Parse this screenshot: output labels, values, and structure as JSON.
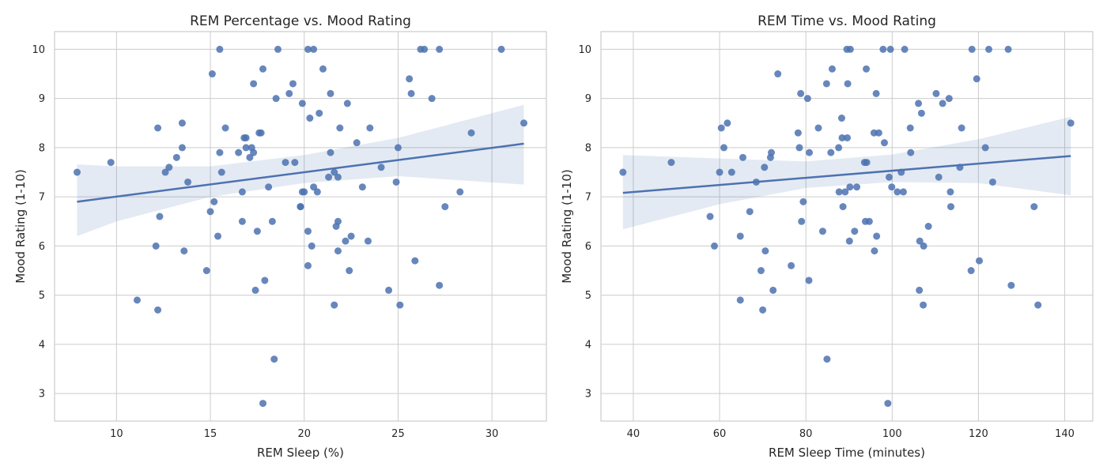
{
  "figure": {
    "background": "#ffffff"
  },
  "style": {
    "point_color": "#4c72b0",
    "line_color": "#4c72b0",
    "band_color": "#4c72b0",
    "grid_color": "#cccccc",
    "frame_color": "#cccccc"
  },
  "chart_data": [
    {
      "type": "scatter",
      "title": "REM Percentage vs. Mood Rating",
      "xlabel": "REM Sleep (%)",
      "ylabel": "Mood Rating (1-10)",
      "xlim": [
        6.7,
        32.9
      ],
      "ylim": [
        2.44,
        10.36
      ],
      "xticks": [
        10,
        15,
        20,
        25,
        30
      ],
      "yticks": [
        3,
        4,
        5,
        6,
        7,
        8,
        9,
        10
      ],
      "grid": true,
      "regression": {
        "x": [
          7.9,
          31.7
        ],
        "y": [
          6.9,
          8.08
        ]
      },
      "confidence_band": {
        "x": [
          7.9,
          10,
          15,
          20,
          25,
          31.7
        ],
        "lower": [
          6.2,
          6.5,
          7.0,
          7.28,
          7.42,
          7.25
        ],
        "upper": [
          7.66,
          7.62,
          7.62,
          7.85,
          8.2,
          8.87
        ]
      },
      "points": [
        [
          7.9,
          7.5
        ],
        [
          9.7,
          7.7
        ],
        [
          11.1,
          4.9
        ],
        [
          12.1,
          6.0
        ],
        [
          12.2,
          8.4
        ],
        [
          12.2,
          4.7
        ],
        [
          12.3,
          6.6
        ],
        [
          12.6,
          7.5
        ],
        [
          12.8,
          7.6
        ],
        [
          13.2,
          7.8
        ],
        [
          13.5,
          8.5
        ],
        [
          13.5,
          8.0
        ],
        [
          13.6,
          5.9
        ],
        [
          13.8,
          7.3
        ],
        [
          14.8,
          5.5
        ],
        [
          15.0,
          6.7
        ],
        [
          15.1,
          9.5
        ],
        [
          15.2,
          6.9
        ],
        [
          15.4,
          6.2
        ],
        [
          15.5,
          10.0
        ],
        [
          15.5,
          7.9
        ],
        [
          15.6,
          7.5
        ],
        [
          15.8,
          8.4
        ],
        [
          16.5,
          7.9
        ],
        [
          16.7,
          7.1
        ],
        [
          16.7,
          6.5
        ],
        [
          16.8,
          8.2
        ],
        [
          16.9,
          8.2
        ],
        [
          16.9,
          8.0
        ],
        [
          17.1,
          7.8
        ],
        [
          17.2,
          8.0
        ],
        [
          17.3,
          9.3
        ],
        [
          17.3,
          7.9
        ],
        [
          17.4,
          5.1
        ],
        [
          17.5,
          6.3
        ],
        [
          17.6,
          8.3
        ],
        [
          17.7,
          8.3
        ],
        [
          17.8,
          9.6
        ],
        [
          17.8,
          2.8
        ],
        [
          17.9,
          5.3
        ],
        [
          18.1,
          7.2
        ],
        [
          18.3,
          6.5
        ],
        [
          18.4,
          3.7
        ],
        [
          18.5,
          9.0
        ],
        [
          18.6,
          10.0
        ],
        [
          19.0,
          7.7
        ],
        [
          19.2,
          9.1
        ],
        [
          19.4,
          9.3
        ],
        [
          19.5,
          7.7
        ],
        [
          19.8,
          6.8
        ],
        [
          19.8,
          6.8
        ],
        [
          19.9,
          8.9
        ],
        [
          19.9,
          7.1
        ],
        [
          20.0,
          7.1
        ],
        [
          20.2,
          10.0
        ],
        [
          20.2,
          6.3
        ],
        [
          20.2,
          5.6
        ],
        [
          20.3,
          8.6
        ],
        [
          20.4,
          6.0
        ],
        [
          20.5,
          10.0
        ],
        [
          20.5,
          7.2
        ],
        [
          20.7,
          7.1
        ],
        [
          20.8,
          8.7
        ],
        [
          21.0,
          9.6
        ],
        [
          21.3,
          7.4
        ],
        [
          21.4,
          9.1
        ],
        [
          21.4,
          7.9
        ],
        [
          21.6,
          4.8
        ],
        [
          21.6,
          7.5
        ],
        [
          21.7,
          6.4
        ],
        [
          21.8,
          7.4
        ],
        [
          21.8,
          6.5
        ],
        [
          21.8,
          5.9
        ],
        [
          21.9,
          8.4
        ],
        [
          22.2,
          6.1
        ],
        [
          22.3,
          8.9
        ],
        [
          22.4,
          5.5
        ],
        [
          22.5,
          6.2
        ],
        [
          22.8,
          8.1
        ],
        [
          23.1,
          7.2
        ],
        [
          23.4,
          6.1
        ],
        [
          23.5,
          8.4
        ],
        [
          24.1,
          7.6
        ],
        [
          24.5,
          5.1
        ],
        [
          24.9,
          7.3
        ],
        [
          25.0,
          8.0
        ],
        [
          25.1,
          4.8
        ],
        [
          25.6,
          9.4
        ],
        [
          25.7,
          9.1
        ],
        [
          25.9,
          5.7
        ],
        [
          26.2,
          10.0
        ],
        [
          26.4,
          10.0
        ],
        [
          26.8,
          9.0
        ],
        [
          27.2,
          10.0
        ],
        [
          27.2,
          5.2
        ],
        [
          27.5,
          6.8
        ],
        [
          28.3,
          7.1
        ],
        [
          28.9,
          8.3
        ],
        [
          30.5,
          10.0
        ],
        [
          31.7,
          8.5
        ]
      ]
    },
    {
      "type": "scatter",
      "title": "REM Time vs. Mood Rating",
      "xlabel": "REM Sleep Time (minutes)",
      "ylabel": "Mood Rating (1-10)",
      "xlim": [
        32.5,
        146.5
      ],
      "ylim": [
        2.44,
        10.36
      ],
      "xticks": [
        40,
        60,
        80,
        100,
        120,
        140
      ],
      "yticks": [
        3,
        4,
        5,
        6,
        7,
        8,
        9,
        10
      ],
      "grid": true,
      "regression": {
        "x": [
          37.6,
          141.4
        ],
        "y": [
          7.08,
          7.83
        ]
      },
      "confidence_band": {
        "x": [
          37.6,
          60,
          80,
          100,
          120,
          141.4
        ],
        "lower": [
          6.34,
          6.85,
          7.18,
          7.3,
          7.28,
          7.03
        ],
        "upper": [
          7.85,
          7.78,
          7.72,
          7.86,
          8.17,
          8.63
        ]
      },
      "points": [
        [
          37.6,
          7.5
        ],
        [
          48.8,
          7.7
        ],
        [
          57.8,
          6.6
        ],
        [
          58.8,
          6.0
        ],
        [
          60.0,
          7.5
        ],
        [
          60.4,
          8.4
        ],
        [
          61.0,
          8.0
        ],
        [
          61.8,
          8.5
        ],
        [
          62.8,
          7.5
        ],
        [
          64.8,
          6.2
        ],
        [
          64.8,
          4.9
        ],
        [
          65.4,
          7.8
        ],
        [
          67.0,
          6.7
        ],
        [
          68.5,
          7.3
        ],
        [
          69.6,
          5.5
        ],
        [
          70.0,
          4.7
        ],
        [
          70.4,
          7.6
        ],
        [
          70.6,
          5.9
        ],
        [
          71.8,
          7.8
        ],
        [
          72.0,
          7.9
        ],
        [
          72.4,
          5.1
        ],
        [
          73.5,
          9.5
        ],
        [
          76.6,
          5.6
        ],
        [
          78.2,
          8.3
        ],
        [
          78.5,
          8.0
        ],
        [
          78.8,
          9.1
        ],
        [
          79.0,
          6.5
        ],
        [
          79.4,
          6.9
        ],
        [
          80.4,
          9.0
        ],
        [
          80.7,
          5.3
        ],
        [
          80.8,
          7.9
        ],
        [
          82.9,
          8.4
        ],
        [
          83.9,
          6.3
        ],
        [
          84.8,
          9.3
        ],
        [
          84.9,
          3.7
        ],
        [
          85.8,
          7.9
        ],
        [
          86.1,
          9.6
        ],
        [
          87.6,
          8.0
        ],
        [
          87.7,
          7.1
        ],
        [
          88.3,
          8.6
        ],
        [
          88.4,
          8.2
        ],
        [
          88.6,
          6.8
        ],
        [
          89.1,
          7.1
        ],
        [
          89.5,
          10.0
        ],
        [
          89.6,
          8.2
        ],
        [
          89.7,
          9.3
        ],
        [
          90.1,
          6.1
        ],
        [
          90.2,
          7.2
        ],
        [
          90.3,
          10.0
        ],
        [
          91.3,
          6.3
        ],
        [
          91.8,
          7.2
        ],
        [
          93.6,
          7.7
        ],
        [
          93.8,
          6.5
        ],
        [
          94.0,
          9.6
        ],
        [
          94.1,
          7.7
        ],
        [
          94.7,
          6.5
        ],
        [
          95.8,
          8.3
        ],
        [
          95.9,
          5.9
        ],
        [
          96.3,
          9.1
        ],
        [
          96.4,
          6.2
        ],
        [
          96.9,
          8.3
        ],
        [
          97.9,
          10.0
        ],
        [
          98.2,
          8.1
        ],
        [
          99.0,
          2.8
        ],
        [
          99.3,
          7.4
        ],
        [
          99.6,
          10.0
        ],
        [
          99.9,
          7.2
        ],
        [
          101.2,
          7.1
        ],
        [
          102.1,
          7.5
        ],
        [
          102.6,
          7.1
        ],
        [
          102.9,
          10.0
        ],
        [
          104.2,
          8.4
        ],
        [
          104.3,
          7.9
        ],
        [
          106.1,
          8.9
        ],
        [
          106.3,
          5.1
        ],
        [
          106.4,
          6.1
        ],
        [
          106.8,
          8.7
        ],
        [
          107.2,
          4.8
        ],
        [
          107.3,
          6.0
        ],
        [
          108.4,
          6.4
        ],
        [
          110.2,
          9.1
        ],
        [
          110.8,
          7.4
        ],
        [
          111.7,
          8.9
        ],
        [
          113.2,
          9.0
        ],
        [
          113.5,
          7.1
        ],
        [
          113.6,
          6.8
        ],
        [
          115.7,
          7.6
        ],
        [
          116.1,
          8.4
        ],
        [
          118.3,
          5.5
        ],
        [
          118.5,
          10.0
        ],
        [
          119.6,
          9.4
        ],
        [
          120.2,
          5.7
        ],
        [
          121.6,
          8.0
        ],
        [
          122.4,
          10.0
        ],
        [
          123.3,
          7.3
        ],
        [
          126.9,
          10.0
        ],
        [
          127.6,
          5.2
        ],
        [
          132.9,
          6.8
        ],
        [
          133.8,
          4.8
        ],
        [
          141.4,
          8.5
        ]
      ]
    }
  ]
}
